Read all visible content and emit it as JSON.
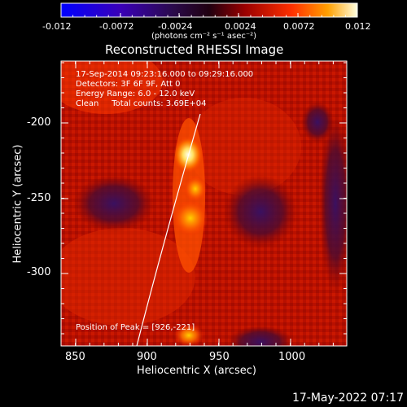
{
  "colorbar": {
    "ticks": [
      "-0.012",
      "-0.0072",
      "-0.0024",
      "0.0024",
      "0.0072",
      "0.012"
    ],
    "units": "(photons cm⁻² s⁻¹ asec⁻²)"
  },
  "title": "Reconstructed RHESSI Image",
  "info": {
    "line1": "17-Sep-2014 09:23:16.000 to 09:29:16.000",
    "line2": "Detectors: 3F 6F 9F, Att 0",
    "line3": "Energy Range: 6.0 - 12.0 keV",
    "line4": "Clean     Total counts: 3.69E+04",
    "peak": "Position of Peak = [926,-221]"
  },
  "axes": {
    "x_label": "Heliocentric X (arcsec)",
    "y_label": "Heliocentric Y (arcsec)",
    "x_ticks": [
      "850",
      "900",
      "950",
      "1000"
    ],
    "y_ticks": [
      "-200",
      "-250",
      "-300"
    ]
  },
  "timestamp": "17-May-2022 07:17",
  "colors": {
    "background": "#000000",
    "limb": "#ffffff"
  }
}
